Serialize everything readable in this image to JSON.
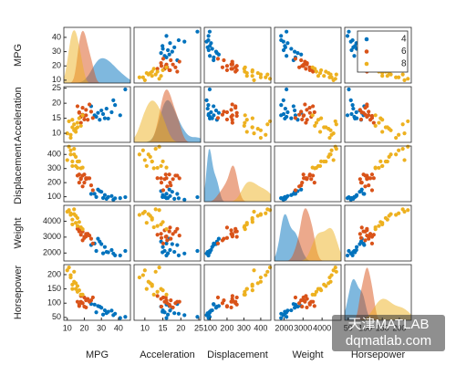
{
  "chart_data": {
    "type": "scatter-matrix",
    "variables": [
      "MPG",
      "Acceleration",
      "Displacement",
      "Weight",
      "Horsepower"
    ],
    "limits": [
      [
        8,
        47
      ],
      [
        7,
        25.5
      ],
      [
        65,
        460
      ],
      [
        1500,
        5000
      ],
      [
        40,
        235
      ]
    ],
    "ticks": [
      [
        10,
        20,
        30,
        40
      ],
      [
        10,
        15,
        20,
        25
      ],
      [
        100,
        200,
        300,
        400
      ],
      [
        2000,
        3000,
        4000
      ],
      [
        50,
        100,
        150,
        200
      ]
    ],
    "legend": "upper right",
    "series": [
      {
        "name": "4",
        "color": "#0072BD",
        "values": [
          [
            27,
            31,
            36,
            44,
            29,
            33,
            26,
            38,
            32,
            30,
            34,
            24,
            28,
            37,
            41
          ],
          [
            15.5,
            16.4,
            17,
            24.6,
            14.5,
            18.2,
            16,
            19.4,
            15,
            17.6,
            14.9,
            19,
            16.8,
            21,
            16
          ],
          [
            98,
            91,
            105,
            97,
            140,
            85,
            121,
            89,
            112,
            135,
            98,
            120,
            151,
            79,
            90
          ],
          [
            2130,
            1980,
            2190,
            2130,
            2720,
            2070,
            2600,
            1850,
            2380,
            2560,
            2045,
            2500,
            2900,
            1970,
            1845
          ],
          [
            68,
            60,
            74,
            52,
            88,
            65,
            95,
            63,
            75,
            84,
            70,
            97,
            90,
            58,
            48
          ]
        ]
      },
      {
        "name": "6",
        "color": "#D95319",
        "values": [
          [
            18,
            21,
            19,
            17,
            22,
            20,
            24,
            16,
            18,
            19,
            25,
            21,
            17,
            20,
            23
          ],
          [
            15.5,
            16,
            18.5,
            17,
            14.5,
            15.8,
            17.2,
            19,
            13.5,
            16.2,
            15.1,
            17.8,
            16.8,
            14.6,
            19.6
          ],
          [
            225,
            232,
            250,
            200,
            231,
            258,
            181,
            250,
            232,
            173,
            146,
            225,
            258,
            200,
            231
          ],
          [
            3430,
            3040,
            3350,
            3600,
            3210,
            3020,
            2900,
            3520,
            3150,
            2800,
            2600,
            3200,
            3360,
            2950,
            3100
          ],
          [
            105,
            110,
            100,
            90,
            115,
            120,
            110,
            105,
            125,
            100,
            120,
            85,
            95,
            88,
            105
          ]
        ]
      },
      {
        "name": "8",
        "color": "#EDB120",
        "values": [
          [
            13,
            15,
            14,
            11,
            16,
            12,
            18,
            17,
            15,
            10,
            14,
            13,
            16,
            19,
            12
          ],
          [
            12,
            10.5,
            11,
            14,
            13.5,
            9.5,
            12.5,
            15,
            11.5,
            10,
            13,
            14.5,
            12,
            16,
            8.5
          ],
          [
            350,
            318,
            400,
            455,
            305,
            429,
            302,
            351,
            383,
            360,
            440,
            318,
            350,
            307,
            400
          ],
          [
            4100,
            3900,
            4450,
            4700,
            3700,
            4500,
            3620,
            3950,
            4340,
            4600,
            4750,
            3800,
            4200,
            3500,
            4400
          ],
          [
            165,
            150,
            175,
            225,
            140,
            198,
            130,
            145,
            170,
            215,
            210,
            150,
            160,
            130,
            190
          ]
        ]
      }
    ],
    "watermark": [
      "天津MATLAB",
      "dqmatlab.com"
    ]
  }
}
